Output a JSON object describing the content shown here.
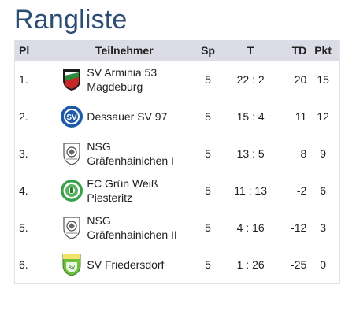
{
  "title": "Rangliste",
  "columns": {
    "pl": "Pl",
    "team": "Teilnehmer",
    "sp": "Sp",
    "t": "T",
    "td": "TD",
    "pkt": "Pkt"
  },
  "rows": [
    {
      "pl": "1.",
      "team": "SV Arminia 53 Magdeburg",
      "sp": "5",
      "t": "22 : 2",
      "td": "20",
      "pkt": "15",
      "crest": "arminia-crest-icon"
    },
    {
      "pl": "2.",
      "team": "Dessauer SV 97",
      "sp": "5",
      "t": "15 : 4",
      "td": "11",
      "pkt": "12",
      "crest": "dessauer-crest-icon"
    },
    {
      "pl": "3.",
      "team": "NSG Gräfenhainichen I",
      "sp": "5",
      "t": "13 : 5",
      "td": "8",
      "pkt": "9",
      "crest": "nsg-crest-icon"
    },
    {
      "pl": "4.",
      "team": "FC Grün Weiß Piesteritz",
      "sp": "5",
      "t": "11 : 13",
      "td": "-2",
      "pkt": "6",
      "crest": "piesteritz-crest-icon"
    },
    {
      "pl": "5.",
      "team": "NSG Gräfenhainichen II",
      "sp": "5",
      "t": "4 : 16",
      "td": "-12",
      "pkt": "3",
      "crest": "nsg-crest-icon"
    },
    {
      "pl": "6.",
      "team": "SV Friedersdorf",
      "sp": "5",
      "t": "1 : 26",
      "td": "-25",
      "pkt": "0",
      "crest": "friedersdorf-crest-icon"
    }
  ],
  "colors": {
    "title": "#2d4d74",
    "header_bg": "#dcdce6"
  }
}
